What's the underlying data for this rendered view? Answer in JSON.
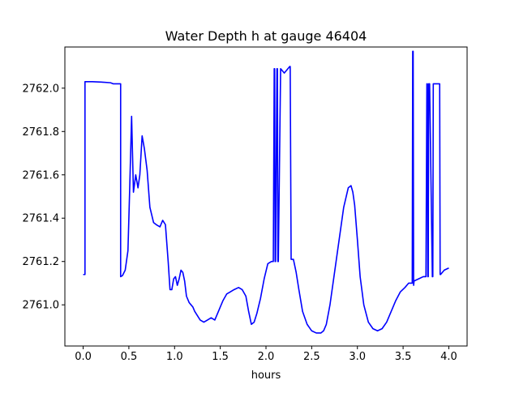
{
  "chart_data": {
    "type": "line",
    "title": "Water Depth h at gauge 46404",
    "xlabel": "hours",
    "ylabel": "",
    "xlim": [
      -0.2,
      4.2
    ],
    "ylim": [
      2760.81,
      2762.19
    ],
    "grid": false,
    "legend": "none",
    "xticks": [
      0.0,
      0.5,
      1.0,
      1.5,
      2.0,
      2.5,
      3.0,
      3.5,
      4.0
    ],
    "xtick_labels": [
      "0.0",
      "0.5",
      "1.0",
      "1.5",
      "2.0",
      "2.5",
      "3.0",
      "3.5",
      "4.0"
    ],
    "yticks": [
      2761.0,
      2761.2,
      2761.4,
      2761.6,
      2761.8,
      2762.0
    ],
    "ytick_labels": [
      "2761.0",
      "2761.2",
      "2761.4",
      "2761.6",
      "2761.8",
      "2762.0"
    ],
    "series": [
      {
        "color": "#0000ff",
        "x": [
          0.0,
          0.02,
          0.02,
          0.1,
          0.2,
          0.3,
          0.33,
          0.41,
          0.41,
          0.43,
          0.46,
          0.49,
          0.51,
          0.53,
          0.55,
          0.575,
          0.6,
          0.62,
          0.645,
          0.67,
          0.7,
          0.73,
          0.77,
          0.8,
          0.84,
          0.87,
          0.9,
          0.93,
          0.95,
          0.97,
          0.99,
          1.01,
          1.03,
          1.05,
          1.07,
          1.09,
          1.11,
          1.13,
          1.16,
          1.18,
          1.2,
          1.22,
          1.25,
          1.28,
          1.32,
          1.36,
          1.4,
          1.44,
          1.47,
          1.5,
          1.53,
          1.57,
          1.61,
          1.65,
          1.7,
          1.74,
          1.78,
          1.81,
          1.84,
          1.87,
          1.9,
          1.94,
          1.98,
          2.02,
          2.06,
          2.08,
          2.09,
          2.095,
          2.1,
          2.105,
          2.12,
          2.125,
          2.13,
          2.135,
          2.16,
          2.2,
          2.24,
          2.26,
          2.265,
          2.275,
          2.3,
          2.33,
          2.36,
          2.4,
          2.45,
          2.5,
          2.55,
          2.6,
          2.63,
          2.66,
          2.7,
          2.75,
          2.8,
          2.85,
          2.9,
          2.93,
          2.95,
          2.97,
          3.0,
          3.03,
          3.07,
          3.12,
          3.17,
          3.22,
          3.27,
          3.32,
          3.37,
          3.42,
          3.47,
          3.52,
          3.56,
          3.59,
          3.6,
          3.605,
          3.61,
          3.615,
          3.62,
          3.67,
          3.72,
          3.75,
          3.76,
          3.765,
          3.77,
          3.775,
          3.78,
          3.79,
          3.82,
          3.825,
          3.83,
          3.9,
          3.905,
          3.91,
          3.95,
          4.0
        ],
        "y": [
          2761.14,
          2761.14,
          2762.03,
          2762.03,
          2762.028,
          2762.025,
          2762.02,
          2762.02,
          2761.13,
          2761.135,
          2761.16,
          2761.25,
          2761.55,
          2761.87,
          2761.52,
          2761.6,
          2761.54,
          2761.6,
          2761.78,
          2761.72,
          2761.62,
          2761.45,
          2761.38,
          2761.37,
          2761.36,
          2761.39,
          2761.37,
          2761.2,
          2761.07,
          2761.07,
          2761.12,
          2761.13,
          2761.09,
          2761.12,
          2761.16,
          2761.15,
          2761.11,
          2761.04,
          2761.01,
          2761.0,
          2760.99,
          2760.97,
          2760.95,
          2760.93,
          2760.92,
          2760.93,
          2760.94,
          2760.93,
          2760.96,
          2760.99,
          2761.02,
          2761.05,
          2761.06,
          2761.07,
          2761.08,
          2761.07,
          2761.04,
          2760.97,
          2760.91,
          2760.92,
          2760.96,
          2761.03,
          2761.12,
          2761.19,
          2761.2,
          2761.2,
          2762.09,
          2762.09,
          2761.2,
          2761.2,
          2762.09,
          2762.09,
          2761.2,
          2761.2,
          2762.09,
          2762.07,
          2762.09,
          2762.1,
          2762.1,
          2761.21,
          2761.21,
          2761.15,
          2761.07,
          2760.97,
          2760.91,
          2760.88,
          2760.87,
          2760.87,
          2760.88,
          2760.91,
          2761.0,
          2761.15,
          2761.3,
          2761.45,
          2761.54,
          2761.55,
          2761.52,
          2761.46,
          2761.3,
          2761.13,
          2761.0,
          2760.92,
          2760.89,
          2760.88,
          2760.89,
          2760.92,
          2760.97,
          2761.02,
          2761.06,
          2761.08,
          2761.1,
          2761.1,
          2761.1,
          2762.17,
          2762.17,
          2761.09,
          2761.11,
          2761.12,
          2761.13,
          2761.13,
          2762.02,
          2762.02,
          2761.13,
          2761.13,
          2762.02,
          2762.02,
          2761.13,
          2761.13,
          2762.02,
          2762.02,
          2761.14,
          2761.14,
          2761.16,
          2761.17
        ]
      }
    ]
  }
}
